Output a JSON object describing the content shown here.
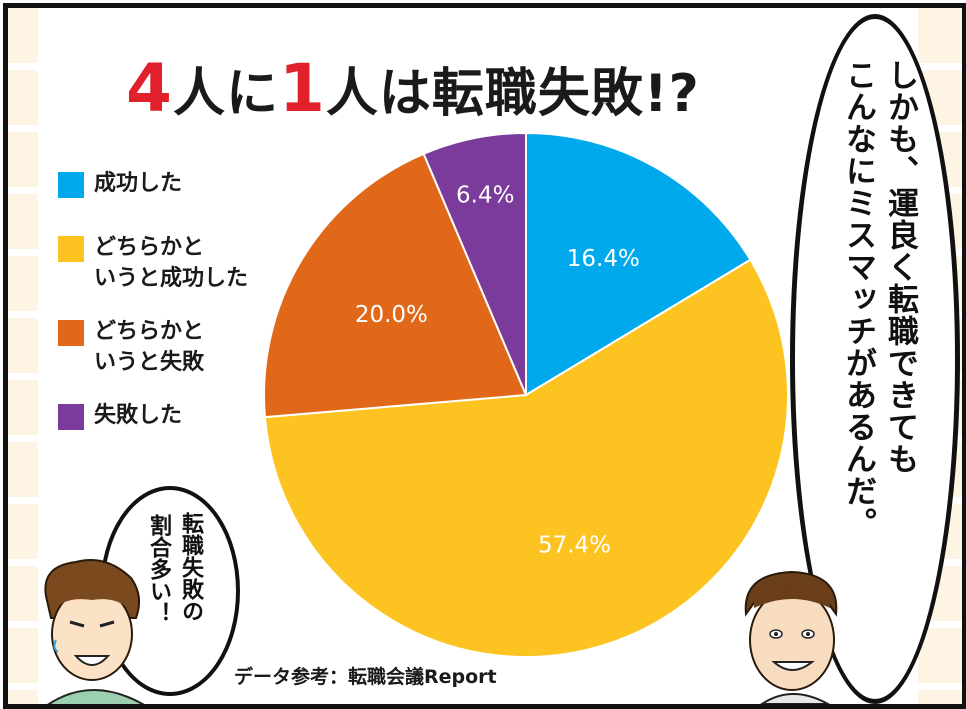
{
  "title": {
    "part1": "4",
    "part2": "人に",
    "part3": "1",
    "part4": "人",
    "part5": "は転職失敗!?"
  },
  "legend": [
    {
      "label": "成功した",
      "color": "#00a9eb"
    },
    {
      "label": "どちらかと\nいうと成功した",
      "color": "#fcc321"
    },
    {
      "label": "どちらかと\nいうと失敗",
      "color": "#e06818"
    },
    {
      "label": "失敗した",
      "color": "#7a3b9a"
    }
  ],
  "bubble_right": {
    "line1": "しかも、運良く転職できても",
    "line2": "こんなにミスマッチがあるんだ。"
  },
  "bubble_left": {
    "line1": "転職失敗の",
    "line2": "割合多い！"
  },
  "source": "データ参考：転職会議Report",
  "chart_data": {
    "type": "pie",
    "title": "",
    "categories": [
      "成功した",
      "どちらかと\nいうと成功した",
      "どちらかと\nいうと失敗",
      "失敗した"
    ],
    "values": [
      16.4,
      57.4,
      20.0,
      6.4
    ],
    "value_labels": [
      "16.4%",
      "57.4%",
      "20.0%",
      "6.4%"
    ],
    "colors": [
      "#00a9eb",
      "#fcc321",
      "#e06818",
      "#7a3b9a"
    ],
    "start_angle_deg": 0,
    "direction": "clockwise",
    "legend_position": "left"
  }
}
